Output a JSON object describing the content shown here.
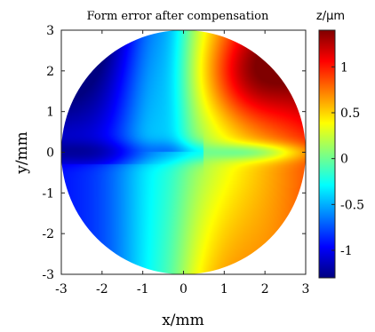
{
  "chart_data": {
    "type": "heatmap",
    "title": "Form error after compensation",
    "xlabel": "x/mm",
    "ylabel": "y/mm",
    "colorbar_label": "z/μm",
    "xlim": [
      -3,
      3
    ],
    "ylim": [
      -3,
      3
    ],
    "xticks": [
      "-3",
      "-2",
      "-1",
      "0",
      "1",
      "2",
      "3"
    ],
    "yticks": [
      "3",
      "2",
      "1",
      "0",
      "-1",
      "-2",
      "-3"
    ],
    "colorbar_range": [
      -1.3,
      1.4
    ],
    "colorbar_ticks": [
      "1",
      "0.5",
      "0",
      "-0.5",
      "-1"
    ],
    "colormap": "jet",
    "aperture_radius": 3,
    "grid": false,
    "surface_samples": [
      {
        "x": -2.5,
        "y": 1.0,
        "z": -1.2
      },
      {
        "x": -1.5,
        "y": 2.0,
        "z": -0.8
      },
      {
        "x": -1.5,
        "y": -1.0,
        "z": -0.6
      },
      {
        "x": -0.5,
        "y": 2.5,
        "z": -0.2
      },
      {
        "x": 0.0,
        "y": 0.0,
        "z": -0.2
      },
      {
        "x": 0.0,
        "y": -2.5,
        "z": -0.1
      },
      {
        "x": 1.0,
        "y": -1.5,
        "z": 0.25
      },
      {
        "x": 1.5,
        "y": 2.0,
        "z": 1.1
      },
      {
        "x": 2.0,
        "y": 1.0,
        "z": 0.9
      },
      {
        "x": 2.5,
        "y": 0.0,
        "z": 0.0
      }
    ]
  }
}
